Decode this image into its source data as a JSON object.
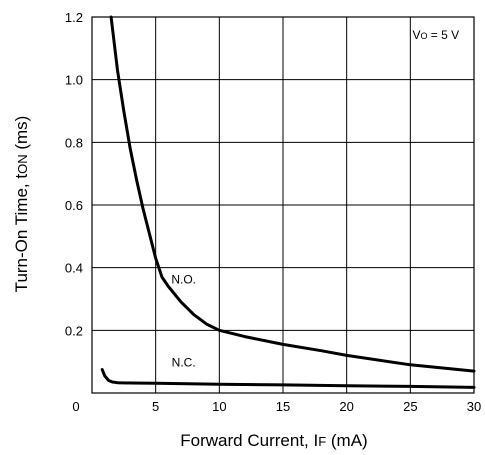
{
  "chart_data": {
    "type": "line",
    "xlabel_main": "Forward Current, I",
    "xlabel_sub": "F",
    "xlabel_unit": " (mA)",
    "ylabel_main": "Turn-On Time, t",
    "ylabel_sub": "ON",
    "ylabel_unit": " (ms)",
    "xlim": [
      0,
      30
    ],
    "ylim": [
      0,
      1.2
    ],
    "x_ticks": [
      0,
      5,
      10,
      15,
      20,
      25,
      30
    ],
    "x_tick_labels": [
      "0",
      "5",
      "10",
      "15",
      "20",
      "25",
      "30"
    ],
    "y_ticks": [
      0.2,
      0.4,
      0.6,
      0.8,
      1.0,
      1.2
    ],
    "y_tick_labels": [
      "0.2",
      "0.4",
      "0.6",
      "0.8",
      "1.0",
      "1.2"
    ],
    "grid": true,
    "annotation": {
      "main": "V",
      "sub": "O",
      "rest": " = 5 V",
      "x": 27,
      "y": 1.13
    },
    "series": [
      {
        "name": "N.O.",
        "label_at": {
          "x": 7.2,
          "y": 0.35
        },
        "x": [
          1.5,
          2.0,
          2.5,
          3.0,
          3.5,
          4.0,
          4.5,
          5.0,
          5.5,
          6.0,
          7.0,
          8.0,
          9.0,
          10.0,
          12.0,
          15.0,
          18.0,
          20.0,
          25.0,
          30.0
        ],
        "values": [
          1.2,
          1.03,
          0.9,
          0.78,
          0.68,
          0.59,
          0.51,
          0.43,
          0.37,
          0.34,
          0.29,
          0.25,
          0.22,
          0.2,
          0.18,
          0.155,
          0.135,
          0.12,
          0.09,
          0.07
        ]
      },
      {
        "name": "N.C.",
        "label_at": {
          "x": 7.2,
          "y": 0.085
        },
        "x": [
          0.8,
          1.0,
          1.3,
          1.6,
          2.0,
          3.0,
          5.0,
          10.0,
          15.0,
          20.0,
          25.0,
          30.0
        ],
        "values": [
          0.075,
          0.055,
          0.04,
          0.035,
          0.033,
          0.032,
          0.031,
          0.028,
          0.026,
          0.023,
          0.021,
          0.018
        ]
      }
    ]
  }
}
